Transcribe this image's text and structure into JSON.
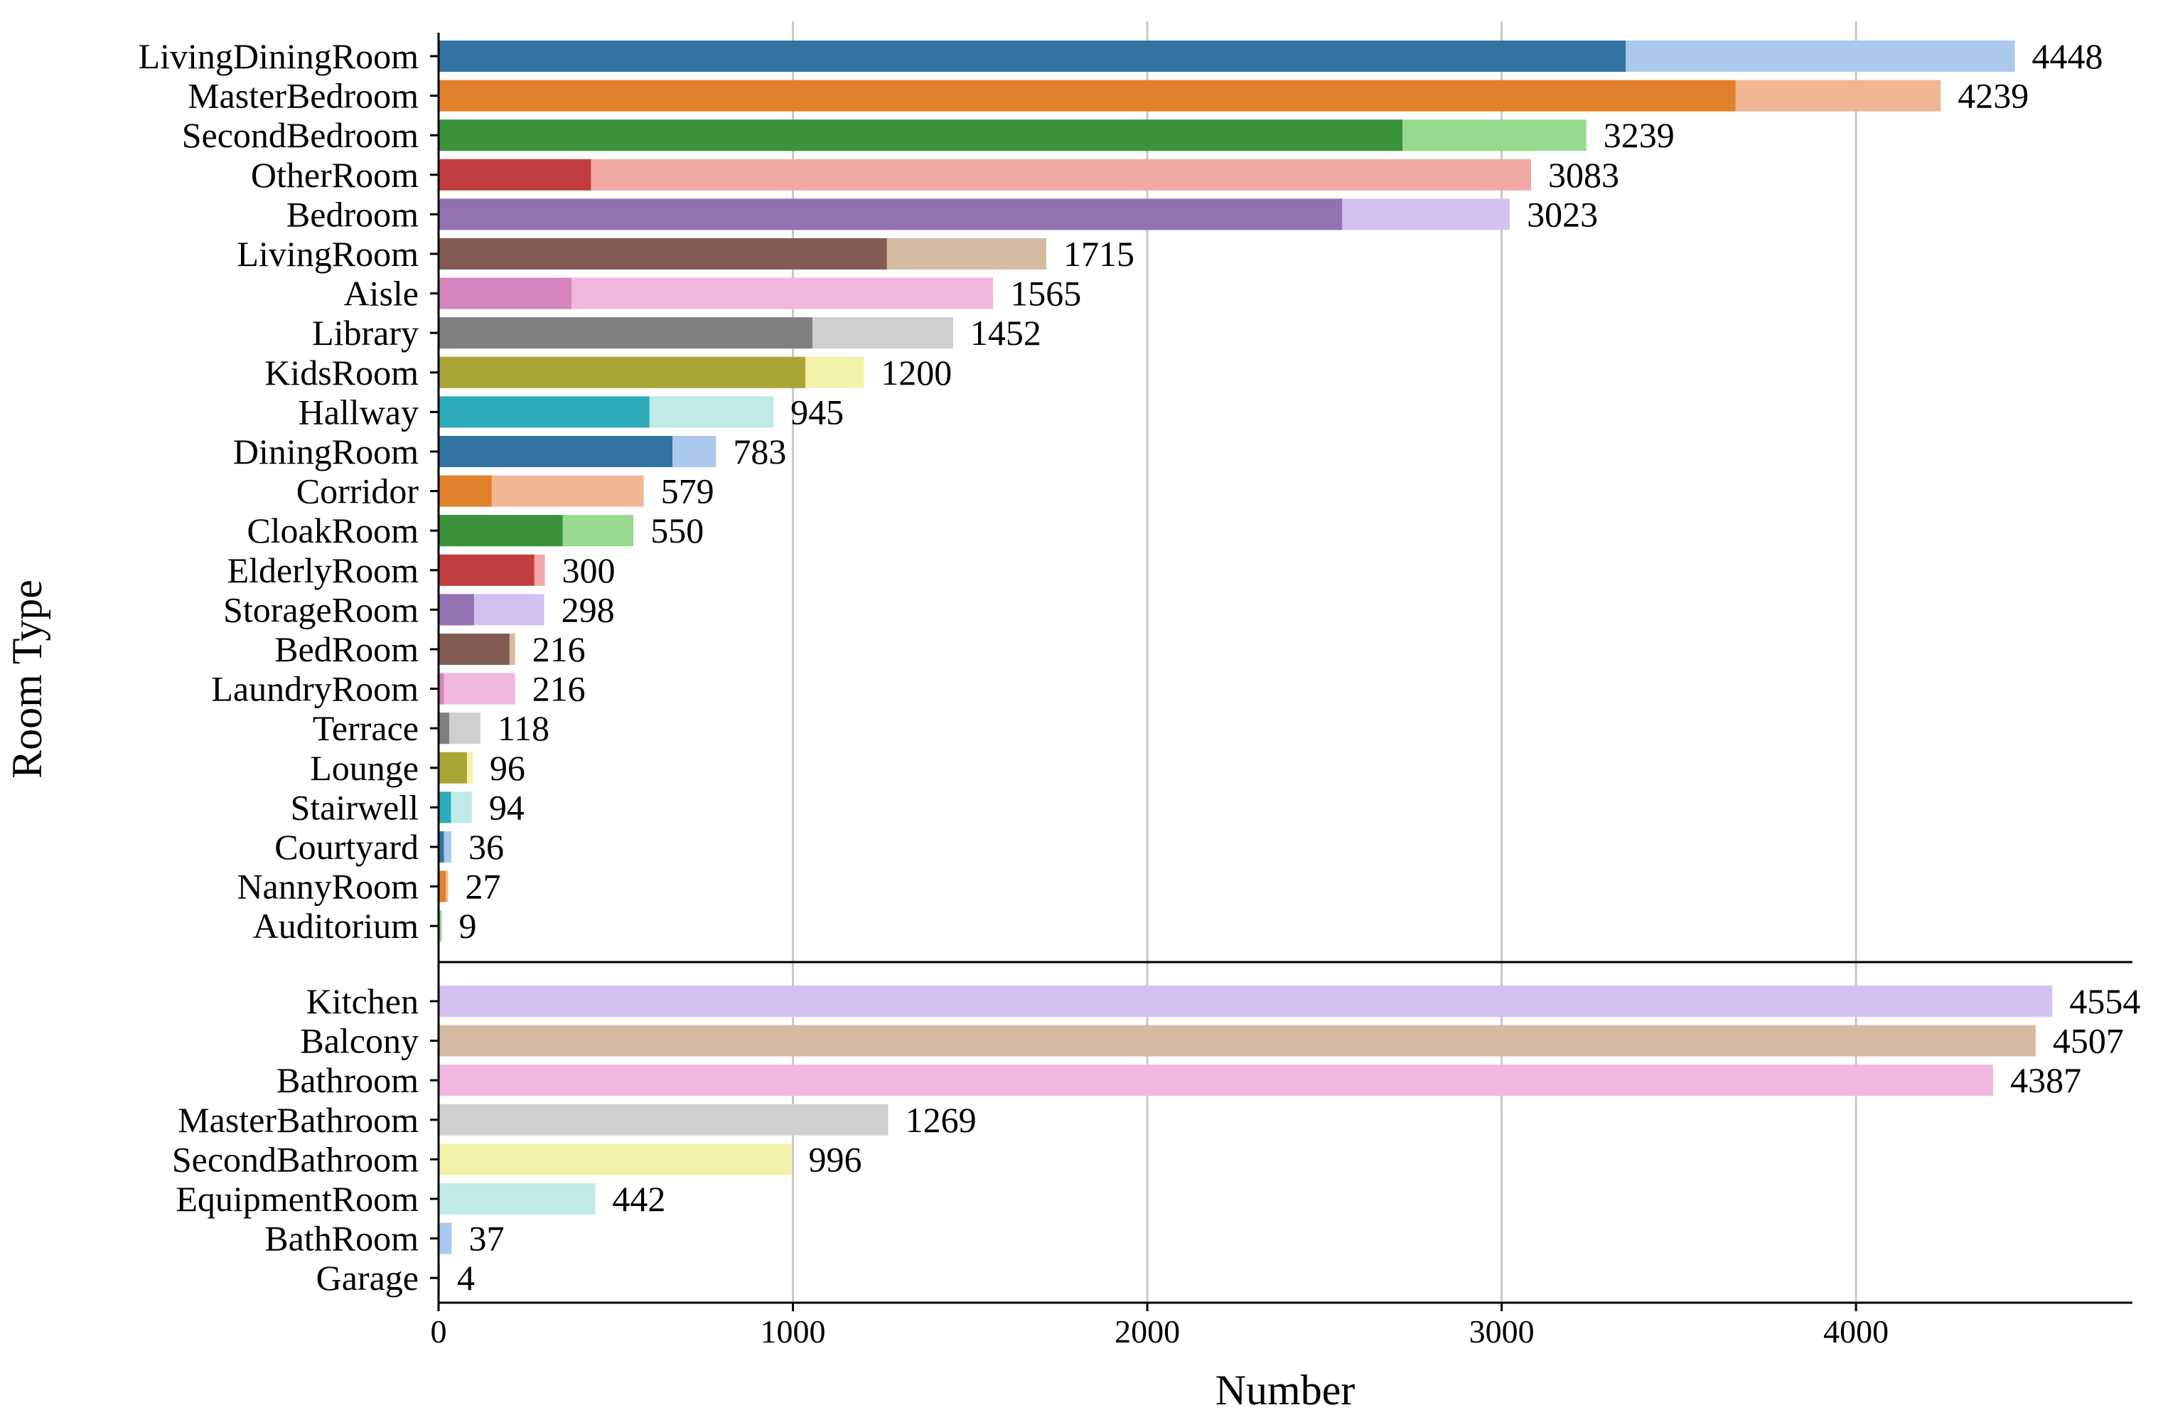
{
  "chart_data": {
    "type": "bar",
    "orientation": "horizontal",
    "stacked": true,
    "xlabel": "Number",
    "ylabel": "Room Type",
    "xlim": [
      0,
      4780
    ],
    "xticks": [
      0,
      1000,
      2000,
      3000,
      4000
    ],
    "grid": "vertical",
    "groups": [
      {
        "name": "group-1",
        "rows": [
          {
            "category": "LivingDiningRoom",
            "inner": 3350,
            "total": 4448,
            "dark": "#3274a1",
            "light": "#abc9ec"
          },
          {
            "category": "MasterBedroom",
            "inner": 3660,
            "total": 4239,
            "dark": "#e1812c",
            "light": "#f1b694"
          },
          {
            "category": "SecondBedroom",
            "inner": 2720,
            "total": 3239,
            "dark": "#3a923a",
            "light": "#97d98e"
          },
          {
            "category": "OtherRoom",
            "inner": 430,
            "total": 3083,
            "dark": "#c03d3e",
            "light": "#f2a8a5"
          },
          {
            "category": "Bedroom",
            "inner": 2550,
            "total": 3023,
            "dark": "#9372b2",
            "light": "#d4c0f3"
          },
          {
            "category": "LivingRoom",
            "inner": 1265,
            "total": 1715,
            "dark": "#845b53",
            "light": "#d6bba3"
          },
          {
            "category": "Aisle",
            "inner": 375,
            "total": 1565,
            "dark": "#d684bd",
            "light": "#f2b7dc"
          },
          {
            "category": "Library",
            "inner": 1055,
            "total": 1452,
            "dark": "#7f7f7f",
            "light": "#cfcfcf"
          },
          {
            "category": "KidsRoom",
            "inner": 1035,
            "total": 1200,
            "dark": "#a9a635",
            "light": "#f2f2a8"
          },
          {
            "category": "Hallway",
            "inner": 595,
            "total": 945,
            "dark": "#2eabb8",
            "light": "#bfeae7"
          },
          {
            "category": "DiningRoom",
            "inner": 660,
            "total": 783,
            "dark": "#3274a1",
            "light": "#abc9ec"
          },
          {
            "category": "Corridor",
            "inner": 150,
            "total": 579,
            "dark": "#e1812c",
            "light": "#f1b694"
          },
          {
            "category": "CloakRoom",
            "inner": 350,
            "total": 550,
            "dark": "#3a923a",
            "light": "#97d98e"
          },
          {
            "category": "ElderlyRoom",
            "inner": 270,
            "total": 300,
            "dark": "#c03d3e",
            "light": "#f2a8a5"
          },
          {
            "category": "StorageRoom",
            "inner": 100,
            "total": 298,
            "dark": "#9372b2",
            "light": "#d4c0f3"
          },
          {
            "category": "BedRoom",
            "inner": 200,
            "total": 216,
            "dark": "#845b53",
            "light": "#d6bba3"
          },
          {
            "category": "LaundryRoom",
            "inner": 15,
            "total": 216,
            "dark": "#d684bd",
            "light": "#f2b7dc"
          },
          {
            "category": "Terrace",
            "inner": 30,
            "total": 118,
            "dark": "#7f7f7f",
            "light": "#cfcfcf"
          },
          {
            "category": "Lounge",
            "inner": 80,
            "total": 96,
            "dark": "#a9a635",
            "light": "#f2f2a8"
          },
          {
            "category": "Stairwell",
            "inner": 35,
            "total": 94,
            "dark": "#2eabb8",
            "light": "#bfeae7"
          },
          {
            "category": "Courtyard",
            "inner": 15,
            "total": 36,
            "dark": "#3274a1",
            "light": "#abc9ec"
          },
          {
            "category": "NannyRoom",
            "inner": 20,
            "total": 27,
            "dark": "#e1812c",
            "light": "#f1b694"
          },
          {
            "category": "Auditorium",
            "inner": 3,
            "total": 9,
            "dark": "#3a923a",
            "light": "#97d98e"
          }
        ]
      },
      {
        "name": "group-2",
        "rows": [
          {
            "category": "Kitchen",
            "inner": 0,
            "total": 4554,
            "dark": "#9372b2",
            "light": "#d4c0f3"
          },
          {
            "category": "Balcony",
            "inner": 0,
            "total": 4507,
            "dark": "#845b53",
            "light": "#d6bba3"
          },
          {
            "category": "Bathroom",
            "inner": 0,
            "total": 4387,
            "dark": "#d684bd",
            "light": "#f2b7dc"
          },
          {
            "category": "MasterBathroom",
            "inner": 0,
            "total": 1269,
            "dark": "#7f7f7f",
            "light": "#cfcfcf"
          },
          {
            "category": "SecondBathroom",
            "inner": 0,
            "total": 996,
            "dark": "#a9a635",
            "light": "#f2f2a8"
          },
          {
            "category": "EquipmentRoom",
            "inner": 0,
            "total": 442,
            "dark": "#2eabb8",
            "light": "#bfeae7"
          },
          {
            "category": "BathRoom",
            "inner": 0,
            "total": 37,
            "dark": "#3274a1",
            "light": "#abc9ec"
          },
          {
            "category": "Garage",
            "inner": 0,
            "total": 4,
            "dark": "#e1812c",
            "light": "#f1b694"
          }
        ]
      }
    ]
  }
}
